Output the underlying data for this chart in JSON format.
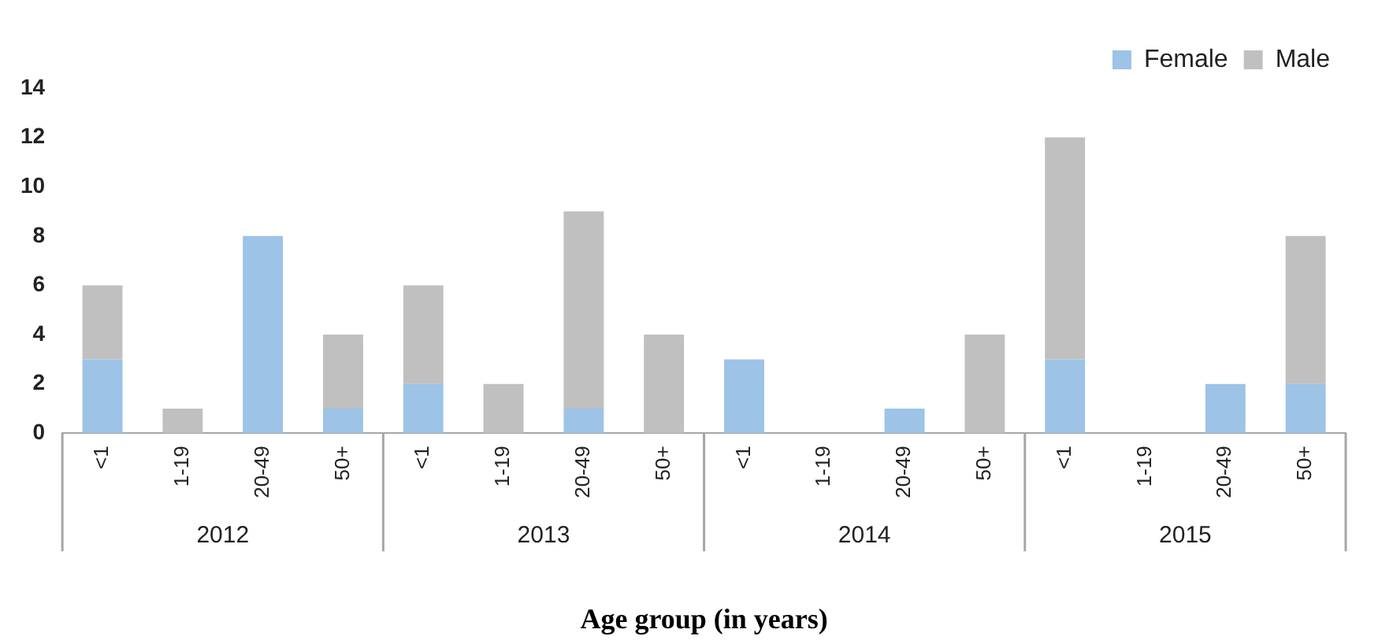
{
  "chart_data": {
    "type": "bar",
    "stacked": true,
    "xlabel": "Age group (in years)",
    "categories": [
      "<1",
      "1-19",
      "20-49",
      "50+",
      "<1",
      "1-19",
      "20-49",
      "50+",
      "<1",
      "1-19",
      "20-49",
      "50+",
      "<1",
      "1-19",
      "20-49",
      "50+"
    ],
    "series": [
      {
        "name": "Female",
        "color": "#9dc3e6",
        "values": [
          3,
          0,
          8,
          1,
          2,
          0,
          1,
          0,
          3,
          0,
          1,
          0,
          3,
          0,
          2,
          2
        ]
      },
      {
        "name": "Male",
        "color": "#c0c0c0",
        "values": [
          3,
          1,
          0,
          3,
          4,
          2,
          8,
          4,
          0,
          0,
          0,
          4,
          9,
          0,
          0,
          6
        ]
      }
    ],
    "ylim": [
      0,
      14
    ],
    "yticks": [
      0,
      2,
      4,
      6,
      8,
      10,
      12,
      14
    ],
    "grid": false,
    "legend": "top right",
    "annotations": [
      "2012",
      "2013",
      "2014",
      "2015"
    ]
  }
}
